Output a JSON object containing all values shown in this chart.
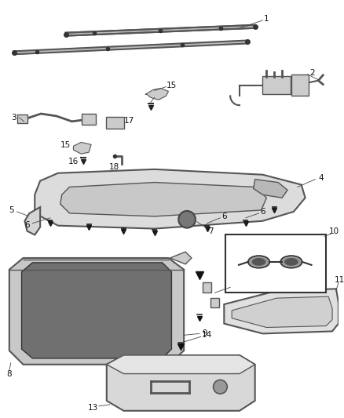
{
  "bg_color": "#ffffff",
  "lc": "#444444",
  "cc": "#555555",
  "fc_light": "#e8e8e8",
  "fc_mid": "#cccccc",
  "fc_dark": "#888888",
  "fc_white": "#f5f5f5"
}
